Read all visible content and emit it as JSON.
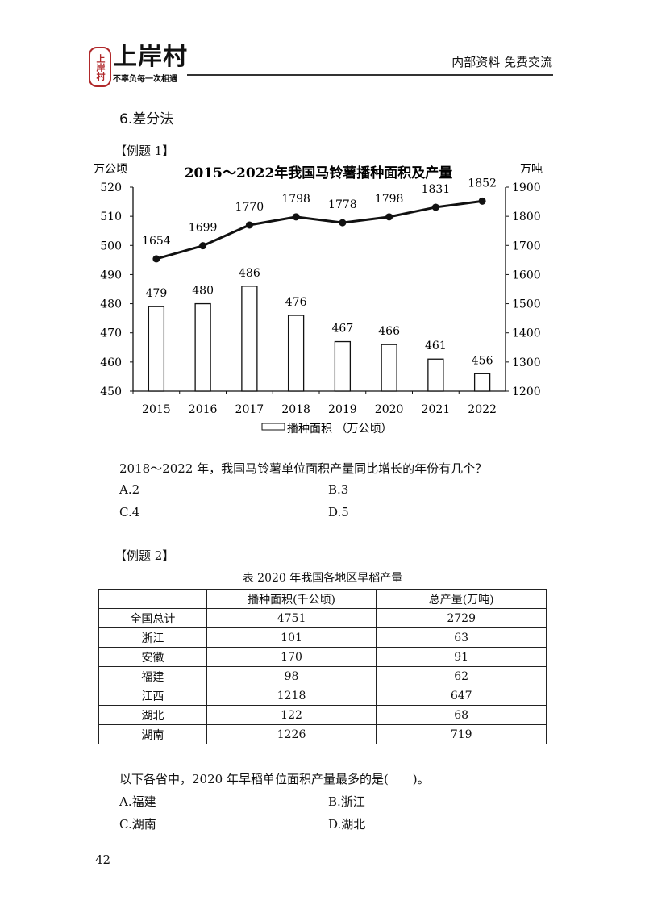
{
  "header": {
    "logo_seal": "上岸村",
    "logo_text": "上岸村",
    "logo_slogan": "不辜负每一次相遇",
    "right_text": "内部资料 免费交流"
  },
  "section_title": "6.差分法",
  "example1": {
    "label": "【例题 1】",
    "question": "2018～2022 年，我国马铃薯单位面积产量同比增长的年份有几个？",
    "options": [
      "A.2",
      "B.3",
      "C.4",
      "D.5"
    ]
  },
  "chart_data": {
    "type": "bar+line",
    "title": "2015～2022年我国马铃薯播种面积及产量",
    "categories": [
      "2015",
      "2016",
      "2017",
      "2018",
      "2019",
      "2020",
      "2021",
      "2022"
    ],
    "left_axis": {
      "unit": "万公顷",
      "ylim": [
        450,
        520
      ],
      "ticks": [
        450,
        460,
        470,
        480,
        490,
        500,
        510,
        520
      ]
    },
    "right_axis": {
      "unit": "万吨",
      "ylim": [
        1200,
        1900
      ],
      "ticks": [
        1200,
        1300,
        1400,
        1500,
        1600,
        1700,
        1800,
        1900
      ]
    },
    "series": [
      {
        "name": "播种面积 （万公顷）",
        "type": "bar",
        "axis": "left",
        "values": [
          479,
          480,
          486,
          476,
          467,
          466,
          461,
          456
        ]
      },
      {
        "type": "line",
        "axis": "right",
        "values": [
          1654,
          1699,
          1770,
          1798,
          1778,
          1798,
          1831,
          1852
        ]
      }
    ],
    "legend": "bottom",
    "grid": false
  },
  "example2": {
    "label": "【例题 2】",
    "table_title": "表 2020 年我国各地区早稻产量",
    "headers": [
      "",
      "播种面积(千公顷)",
      "总产量(万吨)"
    ],
    "rows": [
      [
        "全国总计",
        "4751",
        "2729"
      ],
      [
        "浙江",
        "101",
        "63"
      ],
      [
        "安徽",
        "170",
        "91"
      ],
      [
        "福建",
        "98",
        "62"
      ],
      [
        "江西",
        "1218",
        "647"
      ],
      [
        "湖北",
        "122",
        "68"
      ],
      [
        "湖南",
        "1226",
        "719"
      ]
    ],
    "question": "以下各省中，2020 年早稻单位面积产量最多的是(　　)。",
    "options": [
      "A.福建",
      "B.浙江",
      "C.湖南",
      "D.湖北"
    ]
  },
  "page_number": "42"
}
